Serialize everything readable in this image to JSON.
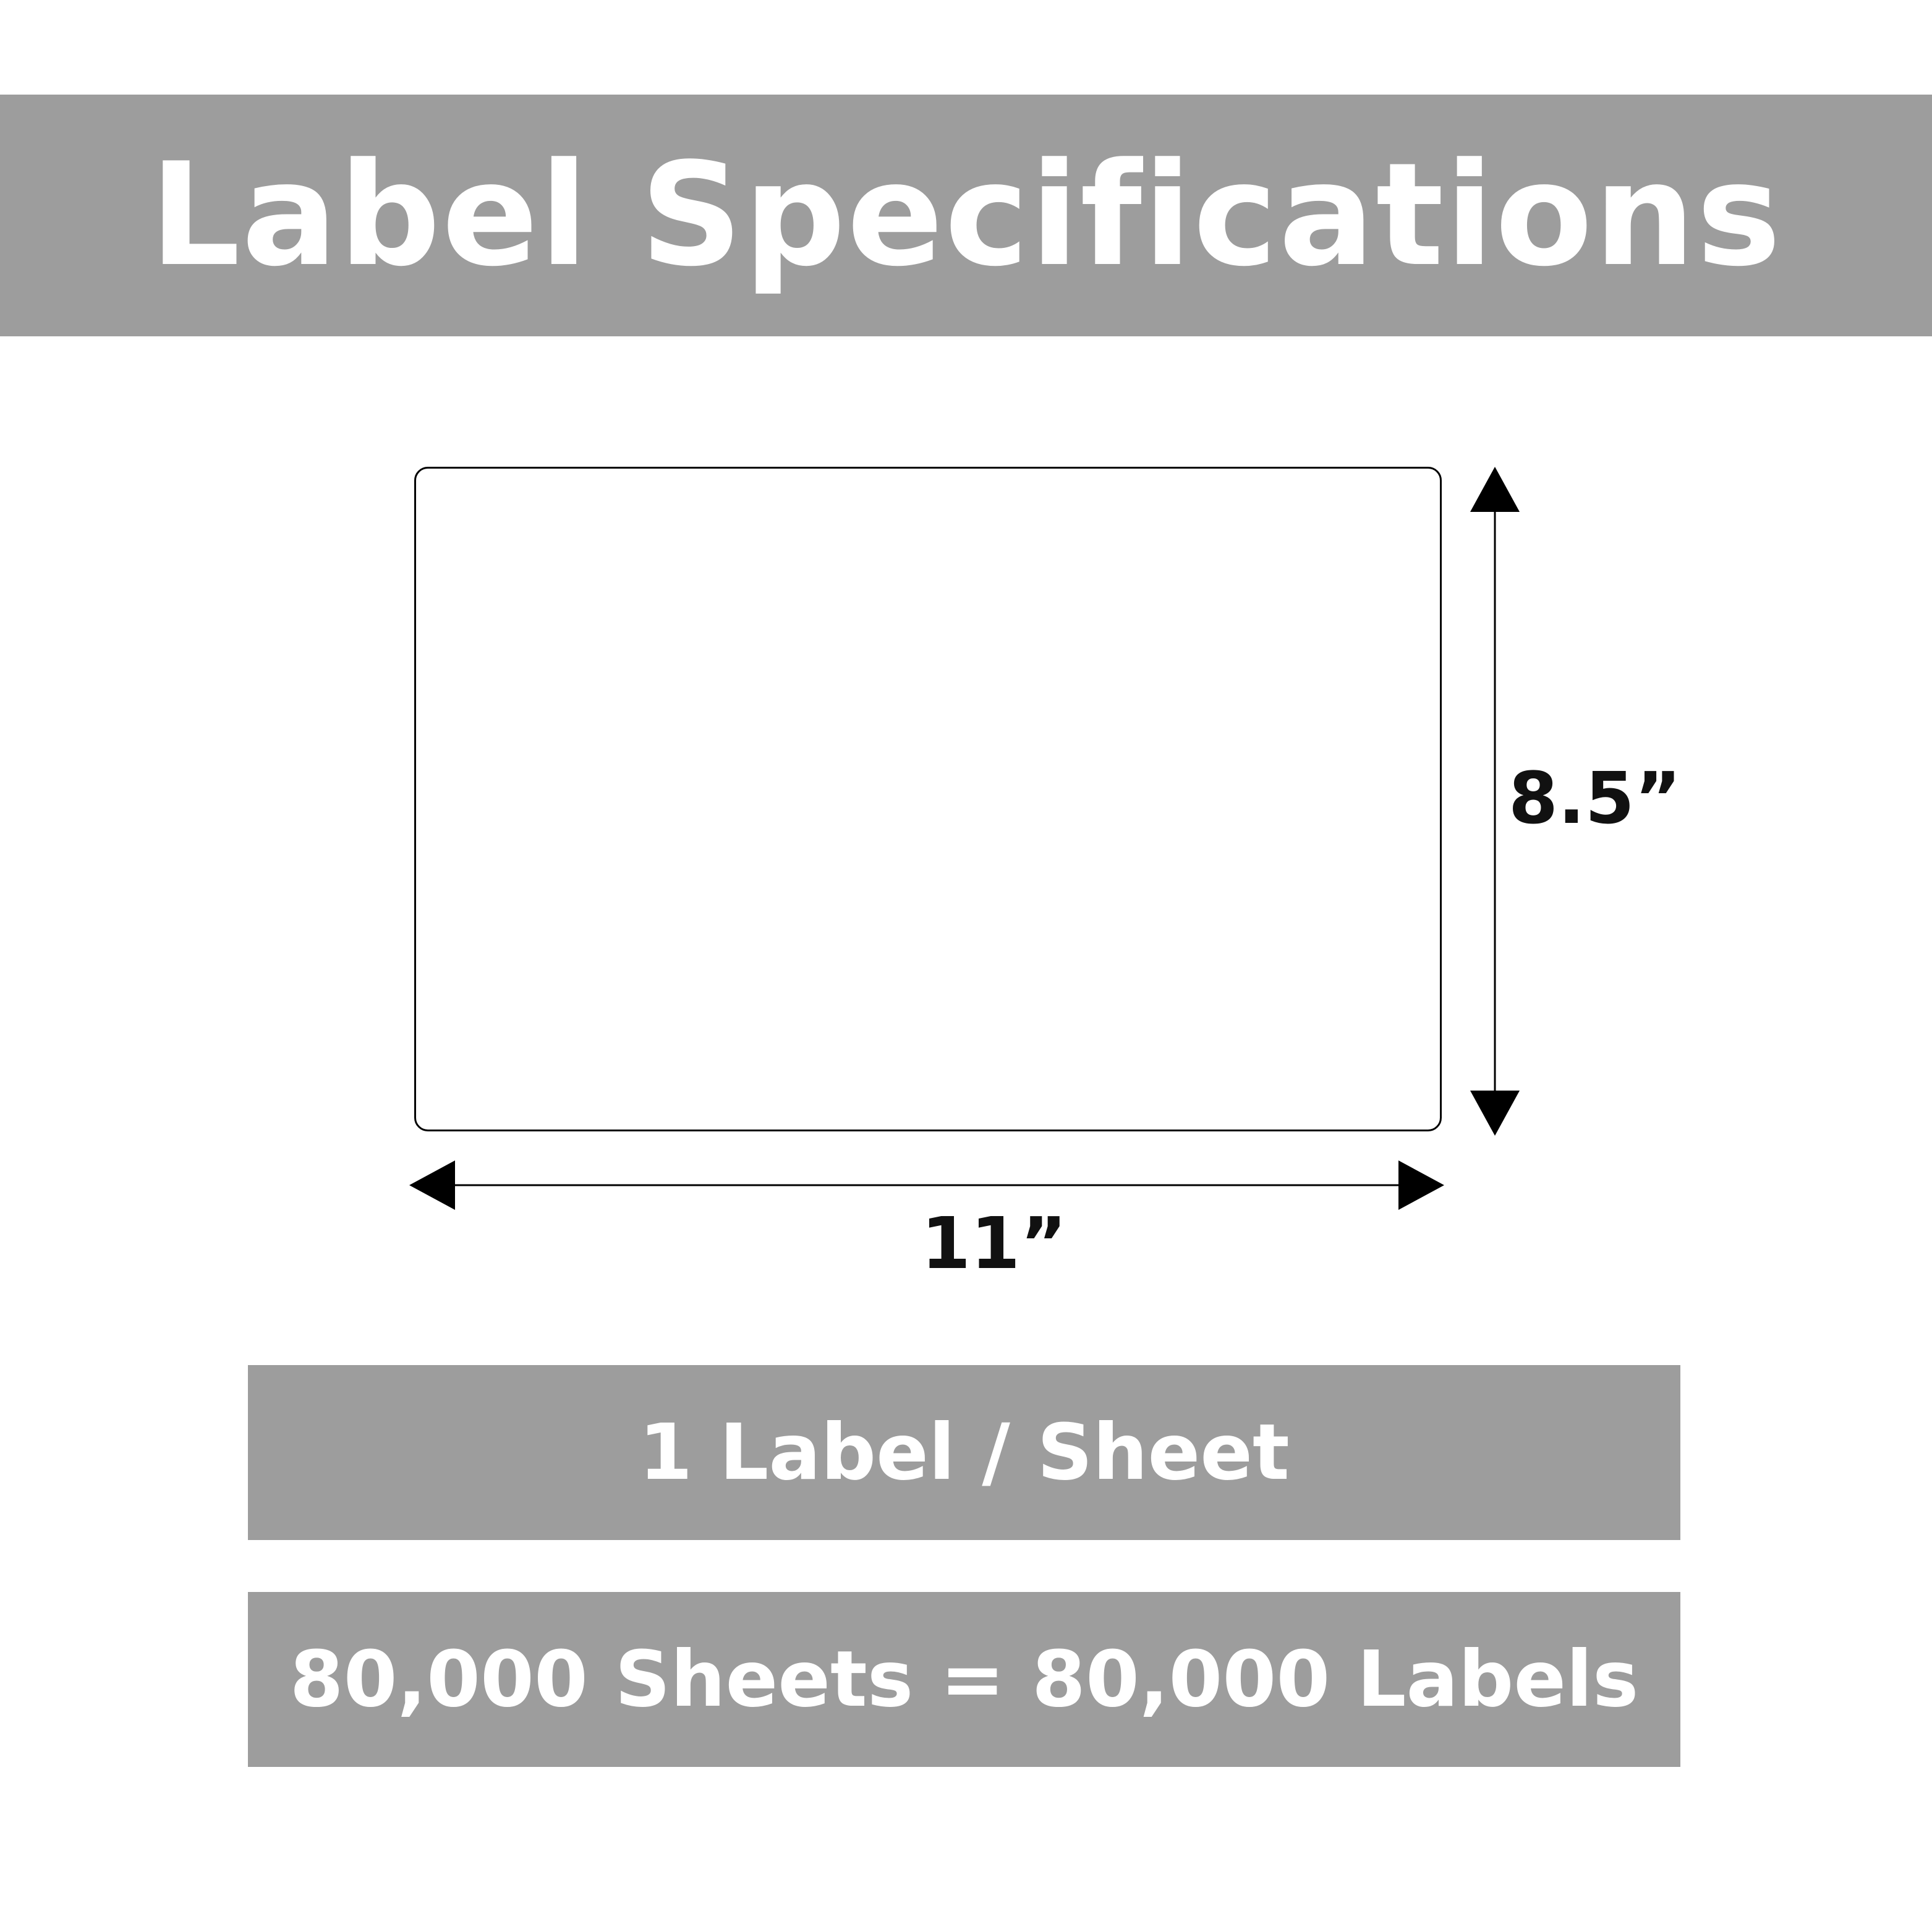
{
  "header": {
    "title": "Label Specifications"
  },
  "diagram": {
    "width_label": "11”",
    "height_label": "8.5”"
  },
  "info": {
    "labels_per_sheet": "1 Label / Sheet",
    "total": "80,000 Sheets = 80,000 Labels"
  },
  "colors": {
    "band": "#9d9d9d",
    "text_on_band": "#ffffff",
    "lines": "#000000"
  }
}
